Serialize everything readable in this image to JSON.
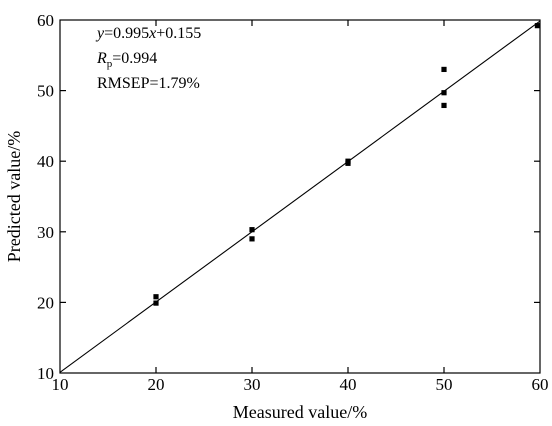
{
  "chart_data": {
    "type": "scatter",
    "title": "",
    "xlabel": "Measured value/%",
    "ylabel": "Predicted value/%",
    "xlim": [
      10,
      60
    ],
    "ylim": [
      10,
      60
    ],
    "xticks": [
      "10",
      "20",
      "30",
      "40",
      "50",
      "60"
    ],
    "yticks": [
      "10",
      "20",
      "30",
      "40",
      "50",
      "60"
    ],
    "grid": false,
    "legend": "none",
    "series": [
      {
        "marker": "square",
        "color": "#000000",
        "points": [
          {
            "x": 20,
            "y": 20.8
          },
          {
            "x": 20,
            "y": 19.9
          },
          {
            "x": 30,
            "y": 30.3
          },
          {
            "x": 30,
            "y": 29.0
          },
          {
            "x": 40,
            "y": 40.0
          },
          {
            "x": 40,
            "y": 39.7
          },
          {
            "x": 50,
            "y": 53.0
          },
          {
            "x": 50,
            "y": 49.7
          },
          {
            "x": 50,
            "y": 47.9
          },
          {
            "x": 60,
            "y": 59.2
          }
        ]
      }
    ],
    "fit_line": {
      "slope": 0.995,
      "intercept": 0.155,
      "color": "#000000"
    },
    "annotations": {
      "equation": {
        "y": "y",
        "rest": "=0.995",
        "x": "x",
        "tail": "+0.155"
      },
      "rp": {
        "r": "R",
        "sub": "p",
        "value": "=0.994"
      },
      "rmsep": "RMSEP=1.79%"
    }
  }
}
